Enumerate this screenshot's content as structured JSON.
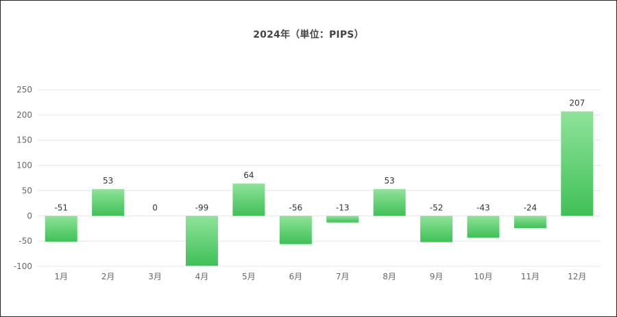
{
  "chart_data": {
    "type": "bar",
    "title": "2024年（単位：PIPS）",
    "categories": [
      "1月",
      "2月",
      "3月",
      "4月",
      "5月",
      "6月",
      "7月",
      "8月",
      "9月",
      "10月",
      "11月",
      "12月"
    ],
    "series": [
      {
        "values": [
          -51,
          53,
          0,
          -99,
          64,
          -56,
          -13,
          53,
          -52,
          -43,
          -24,
          207
        ]
      }
    ],
    "data_labels": [
      "-51",
      "53",
      "0",
      "-99",
      "64",
      "-56",
      "-13",
      "53",
      "-52",
      "-43",
      "-24",
      "207"
    ],
    "y_ticks": [
      "250",
      "200",
      "150",
      "100",
      "50",
      "0",
      "-50",
      "-100"
    ],
    "y_tick_values": [
      250,
      200,
      150,
      100,
      50,
      0,
      -50,
      -100
    ],
    "ylim": [
      -100,
      250
    ],
    "grid": true,
    "legend": "none",
    "colors": {
      "bar_top": "#8fe39a",
      "bar_bottom": "#40c057",
      "grid": "#e3e3ea",
      "text": "#666666"
    }
  }
}
